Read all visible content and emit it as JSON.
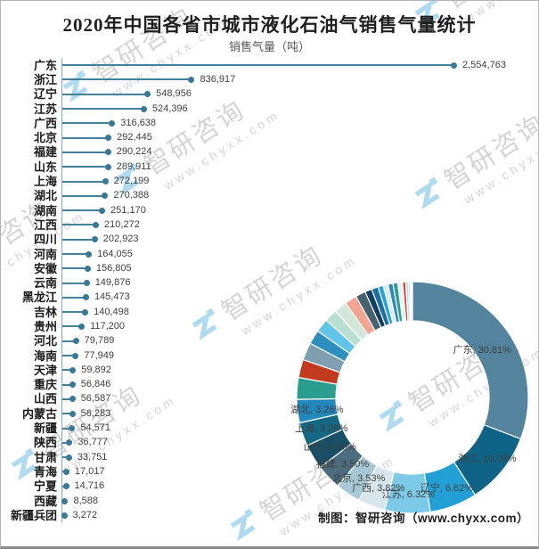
{
  "title": "2020年中国各省市城市液化石油气销售气量统计",
  "subtitle": "销售气量（吨）",
  "footer": "制图：智研咨询（www.chyxx.com）",
  "watermark": {
    "brand": "智研咨询",
    "url": "www.chyxx.com",
    "logo": "zhiyan-logo-icon",
    "logo_color": "#45a9dd"
  },
  "colors": {
    "stem": "#45809c",
    "dot": "#3a7895",
    "axis": "#86aabc",
    "value_label": "#3f3f3f",
    "category_label": "#1a1a1a"
  },
  "chart_data": [
    {
      "type": "bar",
      "orientation": "horizontal",
      "style": "lollipop",
      "title": "2020年中国各省市城市液化石油气销售气量统计",
      "ylabel": "销售气量（吨）",
      "grid": false,
      "categories": [
        "广东",
        "浙江",
        "辽宁",
        "江苏",
        "广西",
        "北京",
        "福建",
        "山东",
        "上海",
        "湖北",
        "湖南",
        "江西",
        "四川",
        "河南",
        "安徽",
        "云南",
        "黑龙江",
        "吉林",
        "贵州",
        "河北",
        "海南",
        "天津",
        "重庆",
        "山西",
        "内蒙古",
        "新疆",
        "陕西",
        "甘肃",
        "青海",
        "宁夏",
        "西藏",
        "新疆兵团"
      ],
      "values": [
        2554763,
        836917,
        548956,
        524396,
        316638,
        292445,
        290224,
        289911,
        272199,
        270388,
        251170,
        210272,
        202923,
        164055,
        156805,
        149876,
        145473,
        140498,
        117200,
        79789,
        77949,
        59892,
        56846,
        56587,
        56283,
        54571,
        36777,
        33751,
        17017,
        14716,
        8588,
        3272
      ],
      "value_labels": [
        "2,554,763",
        "836,917",
        "548,956",
        "524,396",
        "316,638",
        "292,445",
        "290,224",
        "289,911",
        "272,199",
        "270,388",
        "251,170",
        "210,272",
        "202,923",
        "164,055",
        "156,805",
        "149,876",
        "145,473",
        "140,498",
        "117,200",
        "79,789",
        "77,949",
        "59,892",
        "56,846",
        "56,587",
        "56,283",
        "54,571",
        "36,777",
        "33,751",
        "17,017",
        "14,716",
        "8,588",
        "3,272"
      ],
      "bar_color": "#45809c"
    },
    {
      "type": "pie",
      "style": "donut",
      "start_angle_deg": 0,
      "direction": "clockwise",
      "categories": [
        "广东",
        "浙江",
        "辽宁",
        "江苏",
        "广西",
        "北京",
        "福建",
        "山东",
        "上海",
        "湖北",
        "湖南",
        "江西",
        "四川",
        "河南",
        "安徽",
        "云南",
        "黑龙江",
        "吉林",
        "贵州",
        "河北",
        "海南",
        "天津",
        "重庆",
        "山西",
        "内蒙古",
        "新疆",
        "陕西",
        "甘肃",
        "青海",
        "宁夏",
        "西藏",
        "新疆兵团"
      ],
      "values": [
        2554763,
        836917,
        548956,
        524396,
        316638,
        292445,
        290224,
        289911,
        272199,
        270388,
        251170,
        210272,
        202923,
        164055,
        156805,
        149876,
        145473,
        140498,
        117200,
        79789,
        77949,
        59892,
        56846,
        56587,
        56283,
        54571,
        36777,
        33751,
        17017,
        14716,
        8588,
        3272
      ],
      "labels_shown": [
        "广东, 30.81%",
        "浙江, 10.09%",
        "辽宁, 6.62%",
        "江苏, 6.32%",
        "广西, 3.82%",
        "北京, 3.53%",
        "福建, 3.50%",
        "山东, 3.50%",
        "上海, 3.28%",
        "湖北, 3.26%"
      ],
      "colors": [
        "#54839d",
        "#0f6386",
        "#22a0d6",
        "#7cc9e8",
        "#d7e6ec",
        "#a6c8d5",
        "#4d6d7f",
        "#194f66",
        "#156884",
        "#2287bb",
        "#2a9d90",
        "#c23a1d",
        "#7f9fb0",
        "#2e8fbe",
        "#62c4e8",
        "#b9dfd2",
        "#d4e6da",
        "#f2a592",
        "#47606e",
        "#123f5e",
        "#1f6f9e",
        "#2aa0d8",
        "#d8ecf6",
        "#3188b8",
        "#2e9e96",
        "#e8f2f8",
        "#d9472b",
        "#bfe3f2",
        "#5fc0e8",
        "#d8edf8",
        "#8ed4f0",
        "#c5e6f4"
      ]
    }
  ]
}
